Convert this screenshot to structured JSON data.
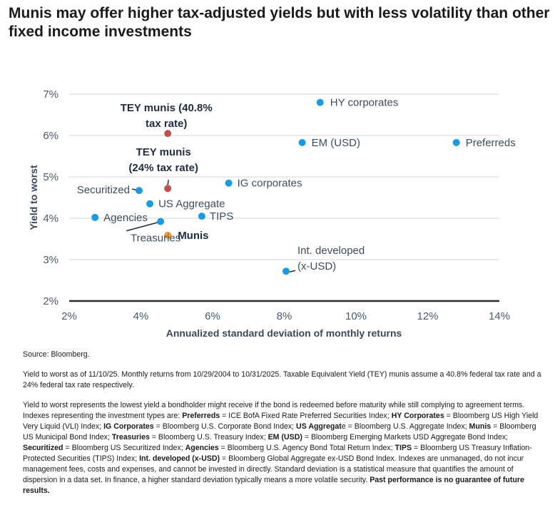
{
  "title": "Munis may offer higher tax-adjusted yields but with less volatility than other fixed income investments",
  "chart_data": {
    "type": "scatter",
    "xlabel": "Annualized standard deviation of monthly returns",
    "ylabel": "Yield to worst",
    "xlim": [
      2,
      14
    ],
    "ylim": [
      2,
      7
    ],
    "xticks": [
      "2%",
      "4%",
      "6%",
      "8%",
      "10%",
      "12%",
      "14%"
    ],
    "yticks": [
      "2%",
      "3%",
      "4%",
      "5%",
      "6%",
      "7%"
    ],
    "grid": "horizontal",
    "colors": {
      "default": "#1a9ae0",
      "tey": "#c0504d",
      "munis": "#f39c34"
    },
    "points": [
      {
        "label": "HY corporates",
        "x": 9.0,
        "y": 6.8,
        "kind": "default"
      },
      {
        "label": "EM (USD)",
        "x": 8.5,
        "y": 5.83,
        "kind": "default"
      },
      {
        "label": "Preferreds",
        "x": 12.8,
        "y": 5.83,
        "kind": "default"
      },
      {
        "label": "TEY munis (40.8% tax rate)",
        "x": 4.75,
        "y": 6.05,
        "kind": "tey"
      },
      {
        "label": "TEY munis (24% tax rate)",
        "x": 4.75,
        "y": 4.72,
        "kind": "tey"
      },
      {
        "label": "IG corporates",
        "x": 6.45,
        "y": 4.85,
        "kind": "default"
      },
      {
        "label": "Securitized",
        "x": 3.95,
        "y": 4.67,
        "kind": "default"
      },
      {
        "label": "US Aggregate",
        "x": 4.25,
        "y": 4.35,
        "kind": "default"
      },
      {
        "label": "Agencies",
        "x": 2.72,
        "y": 4.02,
        "kind": "default"
      },
      {
        "label": "TIPS",
        "x": 5.7,
        "y": 4.05,
        "kind": "default"
      },
      {
        "label": "Treasuries",
        "x": 4.55,
        "y": 3.92,
        "kind": "default"
      },
      {
        "label": "Munis",
        "x": 4.75,
        "y": 3.59,
        "kind": "munis"
      },
      {
        "label": "Int. developed (x-USD)",
        "x": 8.05,
        "y": 2.72,
        "kind": "default"
      }
    ],
    "annotations": [
      {
        "lines": [
          "HY corporates"
        ],
        "bold": false
      },
      {
        "lines": [
          "EM (USD)"
        ],
        "bold": false
      },
      {
        "lines": [
          "Preferreds"
        ],
        "bold": false
      },
      {
        "lines": [
          "TEY munis (40.8%",
          "tax rate)"
        ],
        "bold": true
      },
      {
        "lines": [
          "TEY munis",
          "(24% tax rate)"
        ],
        "bold": true
      },
      {
        "lines": [
          "IG corporates"
        ],
        "bold": false
      },
      {
        "lines": [
          "Securitized"
        ],
        "bold": false
      },
      {
        "lines": [
          "US Aggregate"
        ],
        "bold": false
      },
      {
        "lines": [
          "Agencies"
        ],
        "bold": false
      },
      {
        "lines": [
          "TIPS"
        ],
        "bold": false
      },
      {
        "lines": [
          "Treasuries"
        ],
        "bold": false
      },
      {
        "lines": [
          "Munis"
        ],
        "bold": true
      },
      {
        "lines": [
          "Int. developed",
          "(x-USD)"
        ],
        "bold": false
      }
    ]
  },
  "notes": [
    [
      {
        "t": "Source: Bloomberg."
      }
    ],
    [
      {
        "t": "Yield to worst as of 11/10/25. Monthly returns from 10/29/2004 to 10/31/2025.  Taxable Equivalent Yield (TEY) munis assume a 40.8% federal tax rate and a 24% federal tax rate respectively."
      }
    ],
    [
      {
        "t": "Yield to worst represents the lowest yield a bondholder might receive if the bond is redeemed before maturity while still complying to agreement terms. Indexes representing the investment types are: "
      },
      {
        "t": "Preferreds",
        "b": true
      },
      {
        "t": " = ICE BofA Fixed Rate Preferred Securities Index; "
      },
      {
        "t": "HY Corporates",
        "b": true
      },
      {
        "t": " = Bloomberg US High Yield Very Liquid (VLI) Index; "
      },
      {
        "t": "IG Corporates",
        "b": true
      },
      {
        "t": " = Bloomberg U.S. Corporate Bond Index; "
      },
      {
        "t": "US Aggregat",
        "b": true
      },
      {
        "t": "e = Bloomberg U.S. Aggregate Index; "
      },
      {
        "t": "Munis",
        "b": true
      },
      {
        "t": " = Bloomberg US Municipal Bond Index; "
      },
      {
        "t": "Treasuries",
        "b": true
      },
      {
        "t": " = Bloomberg U.S. Treasury Index; "
      },
      {
        "t": "EM (USD)",
        "b": true
      },
      {
        "t": " = Bloomberg Emerging Markets USD Aggregate Bond Index; "
      },
      {
        "t": "Securitized",
        "b": true
      },
      {
        "t": " = Bloomberg US Securitized Index; "
      },
      {
        "t": "Agencies",
        "b": true
      },
      {
        "t": " = Bloomberg U.S. Agency Bond Total Return Index; "
      },
      {
        "t": "TIPS",
        "b": true
      },
      {
        "t": " = Bloomberg US Treasury Inflation-Protected Securities (TIPS) Index; "
      },
      {
        "t": "Int. developed (x-USD)",
        "b": true
      },
      {
        "t": " = Bloomberg Global Aggregate ex-USD Bond Index. Indexes are unmanaged, do not incur management fees, costs and expenses, and cannot be invested in directly. Standard deviation is a statistical measure that quantifies the amount of dispersion in a data set. In finance, a higher standard deviation typically means a more volatile security. "
      },
      {
        "t": "Past performance is no guarantee of future results.",
        "b": true
      }
    ]
  ]
}
